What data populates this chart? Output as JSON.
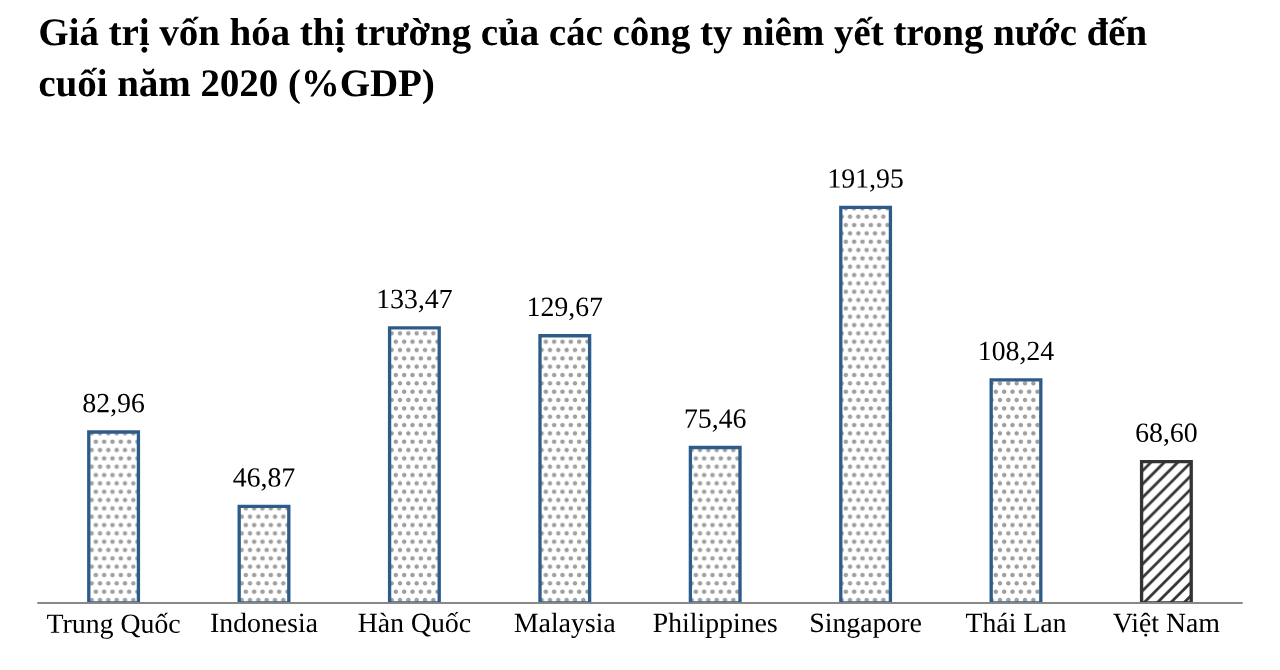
{
  "chart_data": {
    "type": "bar",
    "title": "Giá trị vốn hóa thị trường của các công ty niêm yết trong nước đến\ncuối năm 2020 (%GDP)",
    "categories": [
      "Trung Quốc",
      "Indonesia",
      "Hàn Quốc",
      "Malaysia",
      "Philippines",
      "Singapore",
      "Thái Lan",
      "Việt Nam"
    ],
    "values": [
      82.96,
      46.87,
      133.47,
      129.67,
      75.46,
      191.95,
      108.24,
      68.6
    ],
    "value_labels": [
      "82,96",
      "46,87",
      "133,47",
      "129,67",
      "75,46",
      "191,95",
      "108,24",
      "68,60"
    ],
    "colors": [
      "#2e5c8a",
      "#2e5c8a",
      "#2e5c8a",
      "#2e5c8a",
      "#2e5c8a",
      "#2e5c8a",
      "#2e5c8a",
      "#333333"
    ],
    "grid": false,
    "legend": false
  }
}
